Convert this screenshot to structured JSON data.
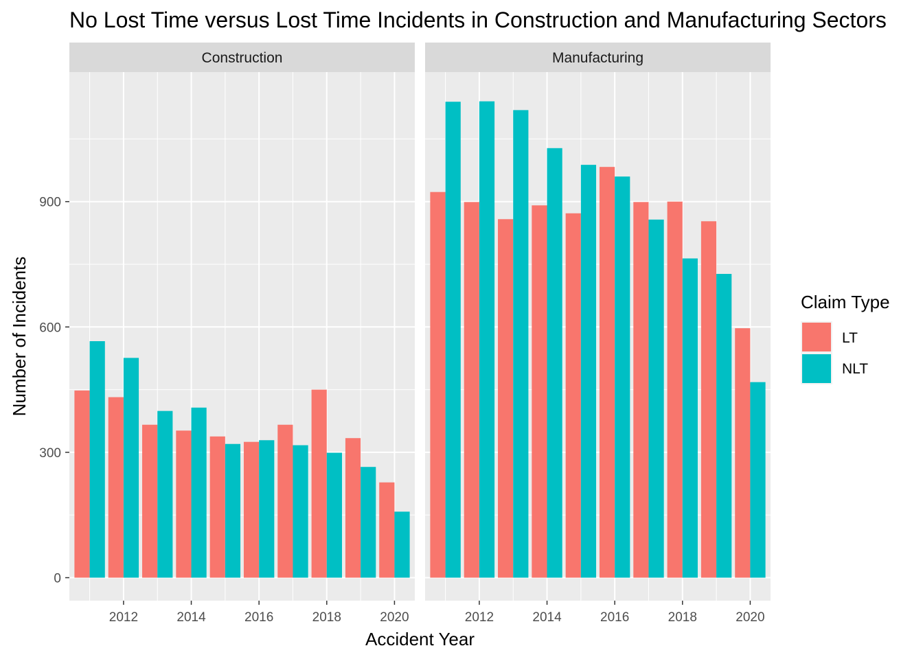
{
  "chart_data": {
    "type": "bar",
    "title": "No Lost Time versus Lost Time Incidents in Construction and Manufacturing Sectors",
    "xlabel": "Accident Year",
    "ylabel": "Number of Incidents",
    "ylim": [
      -55,
      1210
    ],
    "y_ticks": [
      0,
      300,
      600,
      900
    ],
    "y_tick_labels": [
      "0",
      "300",
      "600",
      "900"
    ],
    "xlim": [
      2010.4,
      2020.6
    ],
    "x_ticks": [
      2012,
      2014,
      2016,
      2018,
      2020
    ],
    "x_tick_labels": [
      "2012",
      "2014",
      "2016",
      "2018",
      "2020"
    ],
    "legend": {
      "title": "Claim Type",
      "position": "right",
      "entries": [
        {
          "label": "LT",
          "color": "#F8766D"
        },
        {
          "label": "NLT",
          "color": "#00BFC4"
        }
      ]
    },
    "facets": [
      {
        "label": "Construction",
        "years": [
          2011,
          2012,
          2013,
          2014,
          2015,
          2016,
          2017,
          2018,
          2019,
          2020
        ],
        "series": [
          {
            "name": "LT",
            "values": [
              448,
              432,
              366,
              352,
              338,
              325,
              366,
              450,
              334,
              228
            ]
          },
          {
            "name": "NLT",
            "values": [
              566,
              526,
              399,
              407,
              320,
              329,
              317,
              299,
              265,
              158
            ]
          }
        ]
      },
      {
        "label": "Manufacturing",
        "years": [
          2011,
          2012,
          2013,
          2014,
          2015,
          2016,
          2017,
          2018,
          2019,
          2020
        ],
        "series": [
          {
            "name": "LT",
            "values": [
              923,
              899,
              858,
              891,
              872,
              983,
              899,
              900,
              853,
              597
            ]
          },
          {
            "name": "NLT",
            "values": [
              1139,
              1140,
              1119,
              1028,
              988,
              960,
              857,
              764,
              727,
              468
            ]
          }
        ]
      }
    ]
  }
}
